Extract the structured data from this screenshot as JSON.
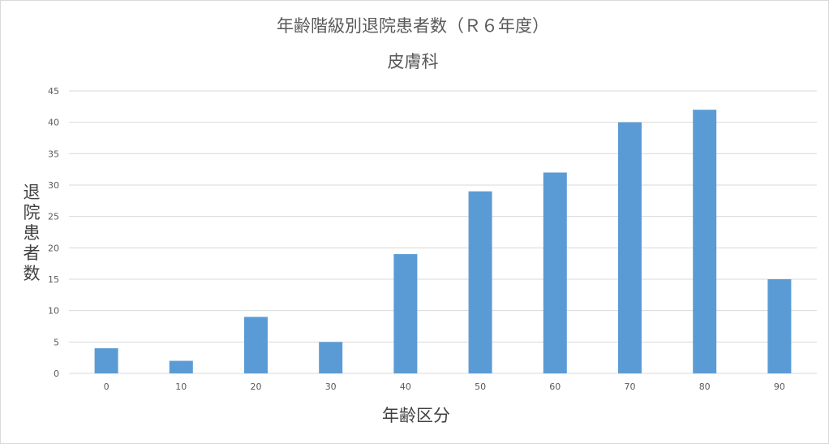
{
  "chart_data": {
    "type": "bar",
    "title": "年齢階級別退院患者数（Ｒ６年度）",
    "subtitle": "皮膚科",
    "xlabel": "年齢区分",
    "ylabel": "退院患者数",
    "categories": [
      "0",
      "10",
      "20",
      "30",
      "40",
      "50",
      "60",
      "70",
      "80",
      "90"
    ],
    "values": [
      4,
      2,
      9,
      5,
      19,
      29,
      32,
      40,
      42,
      15
    ],
    "ylim": [
      0,
      45
    ],
    "yticks": [
      "0",
      "5",
      "10",
      "15",
      "20",
      "25",
      "30",
      "35",
      "40",
      "45"
    ],
    "grid": true,
    "legend": "none",
    "colors": {
      "bar": "#5b9bd5",
      "grid": "#d9d9d9",
      "text": "#595959"
    }
  }
}
